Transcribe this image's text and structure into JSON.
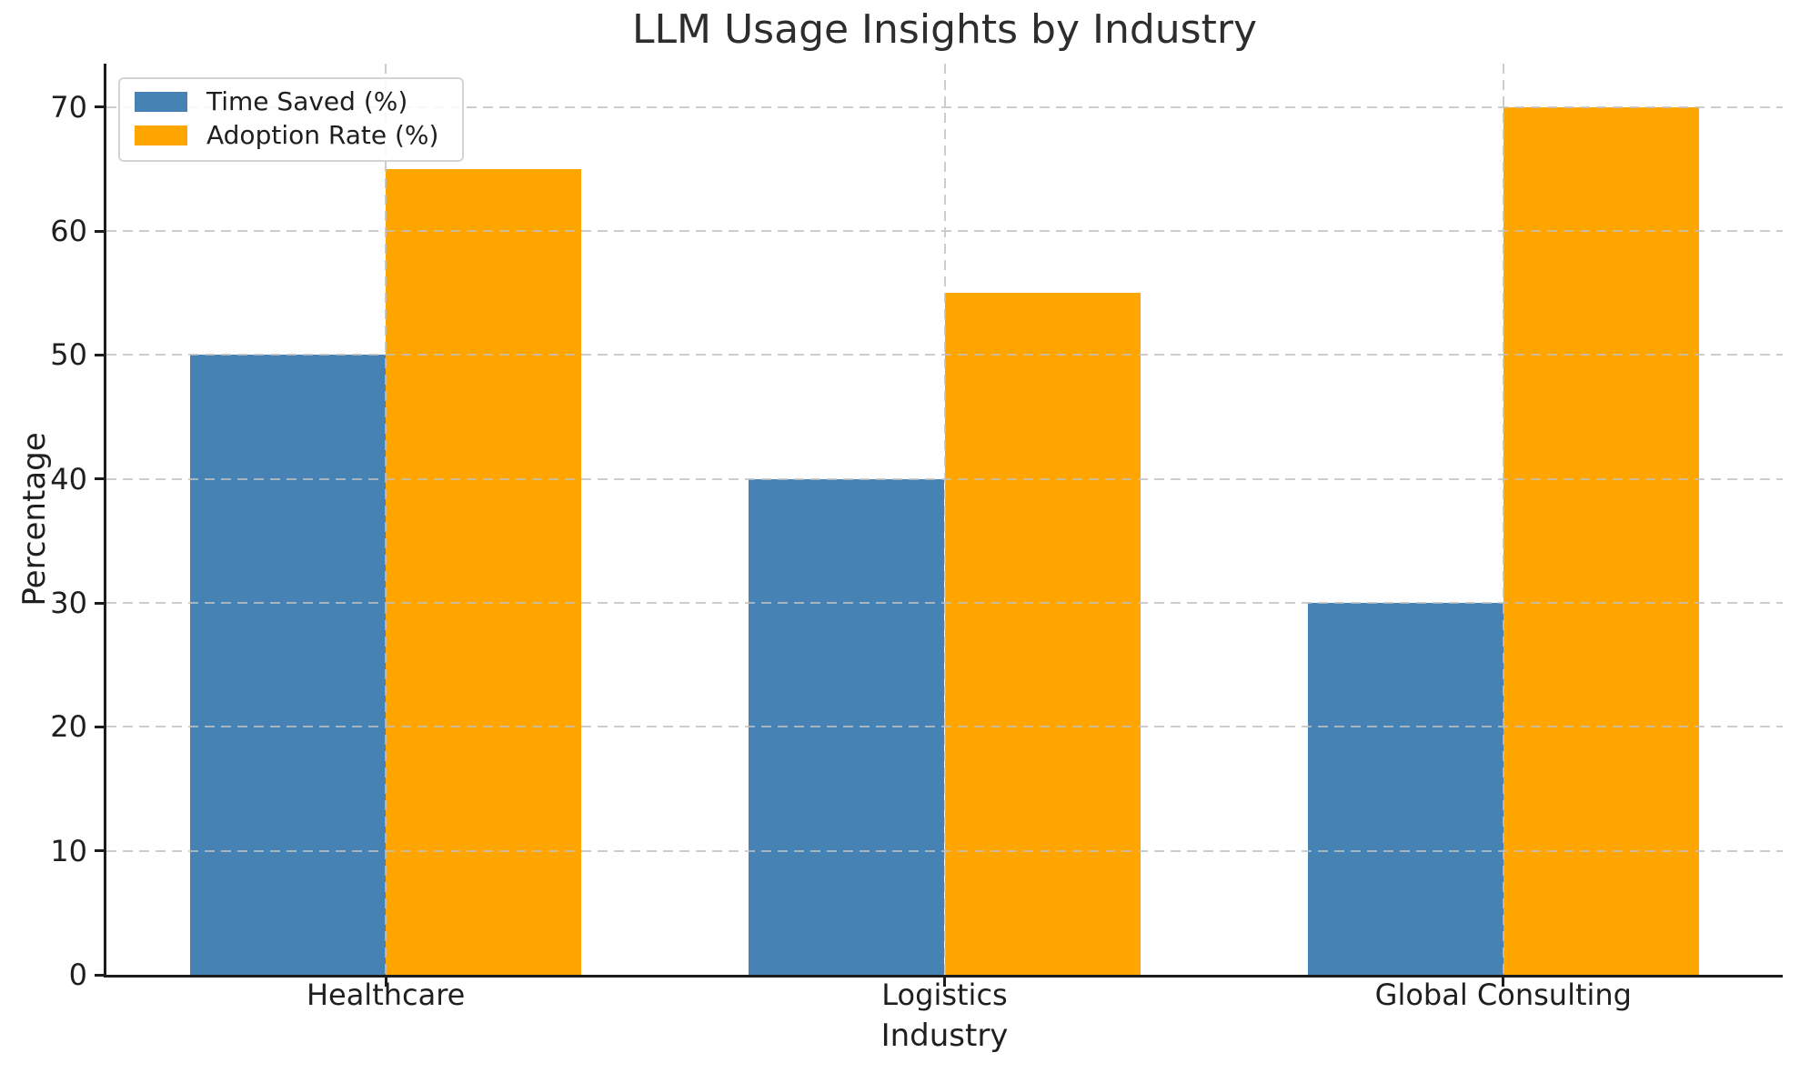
{
  "chart_data": {
    "type": "bar",
    "title": "LLM Usage Insights by Industry",
    "xlabel": "Industry",
    "ylabel": "Percentage",
    "categories": [
      "Healthcare",
      "Logistics",
      "Global Consulting"
    ],
    "series": [
      {
        "name": "Time Saved (%)",
        "color": "#4682B4",
        "values": [
          50,
          40,
          30
        ]
      },
      {
        "name": "Adoption Rate (%)",
        "color": "#FFA500",
        "values": [
          65,
          55,
          70
        ]
      }
    ],
    "ylim": [
      0,
      73.5
    ],
    "yticks": [
      0,
      10,
      20,
      30,
      40,
      50,
      60,
      70
    ],
    "bar_width": 0.35,
    "grid": "both-axes-dashed",
    "legend_position": "upper-left"
  },
  "style": {
    "text_color": "#1f1f1f",
    "grid_color": "#c0c0c0",
    "spine_color": "#1c1c1c",
    "legend_border_color": "#d4d4d4",
    "background_color": "#ffffff"
  }
}
